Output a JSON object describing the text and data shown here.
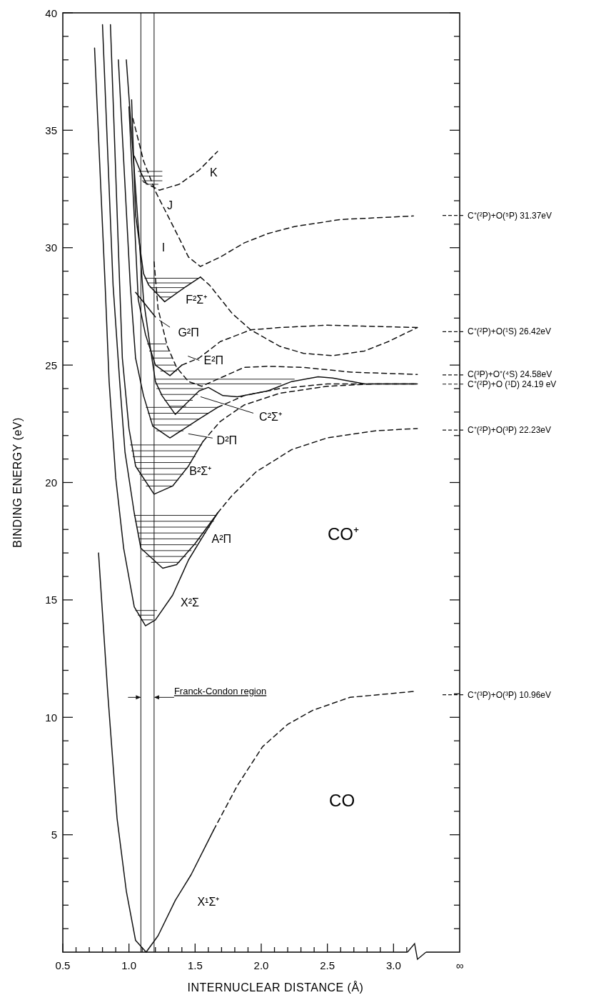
{
  "chart_data": {
    "type": "line",
    "xlabel": "INTERNUCLEAR DISTANCE (Å)",
    "ylabel": "BINDING ENERGY (eV)",
    "xlim": [
      0.5,
      3.5
    ],
    "ylim": [
      0,
      40
    ],
    "xticks": [
      0.5,
      {
        "value": 0.6,
        "label": null
      },
      {
        "value": 0.7,
        "label": null
      },
      {
        "value": 0.8,
        "label": null
      },
      {
        "value": 0.9,
        "label": null
      },
      {
        "value": 1,
        "label": "1.0"
      },
      {
        "value": 1.1,
        "label": null
      },
      {
        "value": 1.2,
        "label": null
      },
      {
        "value": 1.3,
        "label": null
      },
      {
        "value": 1.4,
        "label": null
      },
      1.5,
      {
        "value": 1.6,
        "label": null
      },
      {
        "value": 1.7,
        "label": null
      },
      {
        "value": 1.8,
        "label": null
      },
      {
        "value": 1.9,
        "label": null
      },
      {
        "value": 2,
        "label": "2.0"
      },
      {
        "value": 2.1,
        "label": null
      },
      {
        "value": 2.2,
        "label": null
      },
      {
        "value": 2.3,
        "label": null
      },
      {
        "value": 2.4,
        "label": null
      },
      2.5,
      {
        "value": 2.6,
        "label": null
      },
      {
        "value": 2.7,
        "label": null
      },
      {
        "value": 2.8,
        "label": null
      },
      {
        "value": 2.9,
        "label": null
      },
      {
        "value": 3,
        "label": "3.0"
      },
      {
        "value": 3.1,
        "label": null
      },
      {
        "value": 3.5,
        "label": "∞"
      }
    ],
    "yticks": [
      {
        "value": 1,
        "label": null
      },
      {
        "value": 2,
        "label": null
      },
      {
        "value": 3,
        "label": null
      },
      {
        "value": 4,
        "label": null
      },
      5,
      {
        "value": 6,
        "label": null
      },
      {
        "value": 7,
        "label": null
      },
      {
        "value": 8,
        "label": null
      },
      {
        "value": 9,
        "label": null
      },
      10,
      {
        "value": 11,
        "label": null
      },
      {
        "value": 12,
        "label": null
      },
      {
        "value": 13,
        "label": null
      },
      {
        "value": 14,
        "label": null
      },
      15,
      {
        "value": 16,
        "label": null
      },
      {
        "value": 17,
        "label": null
      },
      {
        "value": 18,
        "label": null
      },
      {
        "value": 19,
        "label": null
      },
      20,
      {
        "value": 21,
        "label": null
      },
      {
        "value": 22,
        "label": null
      },
      {
        "value": 23,
        "label": null
      },
      {
        "value": 24,
        "label": null
      },
      25,
      {
        "value": 26,
        "label": null
      },
      {
        "value": 27,
        "label": null
      },
      {
        "value": 28,
        "label": null
      },
      {
        "value": 29,
        "label": null
      },
      30,
      {
        "value": 31,
        "label": null
      },
      {
        "value": 32,
        "label": null
      },
      {
        "value": 33,
        "label": null
      },
      {
        "value": 34,
        "label": null
      },
      35,
      {
        "value": 36,
        "label": null
      },
      {
        "value": 37,
        "label": null
      },
      {
        "value": 38,
        "label": null
      },
      {
        "value": 39,
        "label": null
      },
      40
    ],
    "series": [
      {
        "color": "#111111",
        "line_style": "solid",
        "x": [
          0.77,
          0.84,
          0.91,
          0.98,
          1.05,
          1.13,
          1.22,
          1.35,
          1.47,
          1.64
        ],
        "values": [
          17.0,
          11.0,
          5.7,
          2.6,
          0.5,
          0,
          0.7,
          2.2,
          3.3,
          5.2
        ]
      },
      {
        "color": "#111111",
        "line_style": "dashed",
        "x": [
          1.64,
          1.82,
          2.01,
          2.2,
          2.39,
          2.67,
          3.15
        ],
        "values": [
          5.2,
          7.1,
          8.75,
          9.7,
          10.3,
          10.85,
          11.1
        ]
      },
      {
        "color": "#111111",
        "line_style": "solid",
        "x": [
          0.74,
          0.82,
          0.85,
          0.9,
          0.96,
          1.04,
          1.125,
          1.2,
          1.33,
          1.45,
          1.58,
          1.67
        ],
        "values": [
          38.5,
          28.4,
          24.3,
          20.2,
          17.2,
          14.7,
          13.9,
          14.15,
          15.2,
          16.7,
          17.9,
          18.7
        ]
      },
      {
        "color": "#111111",
        "line_style": "solid",
        "x": [
          0.8,
          0.88,
          0.93,
          0.97,
          1.04,
          1.09,
          1.255,
          1.36,
          1.5,
          1.67
        ],
        "values": [
          39.5,
          28.4,
          24.3,
          21.3,
          18.7,
          17.2,
          16.35,
          16.5,
          17.4,
          18.7
        ]
      },
      {
        "color": "#111111",
        "line_style": "dashed",
        "x": [
          1.67,
          1.78,
          1.96,
          2.23,
          2.5,
          2.86,
          3.18
        ],
        "values": [
          18.7,
          19.45,
          20.45,
          21.4,
          21.9,
          22.2,
          22.3
        ]
      },
      {
        "color": "#111111",
        "line_style": "solid",
        "x": [
          0.86,
          0.93,
          0.95,
          1.0,
          1.05,
          1.19,
          1.33,
          1.45,
          1.56
        ],
        "values": [
          39.5,
          28.4,
          25.3,
          22.3,
          20.7,
          19.5,
          19.85,
          20.7,
          21.75
        ]
      },
      {
        "color": "#111111",
        "line_style": "dashed",
        "x": [
          1.56,
          1.69,
          1.87,
          2.14,
          2.5,
          2.86,
          3.18
        ],
        "values": [
          21.75,
          22.6,
          23.3,
          23.8,
          24.1,
          24.2,
          24.2
        ]
      },
      {
        "color": "#111111",
        "line_style": "solid",
        "x": [
          0.92,
          1.01,
          1.05,
          1.11,
          1.18,
          1.31,
          1.53,
          1.67
        ],
        "values": [
          38,
          28.4,
          25.3,
          23.7,
          22.4,
          21.9,
          22.7,
          23.2
        ]
      },
      {
        "color": "#111111",
        "line_style": "dashed",
        "x": [
          1.67,
          1.87,
          2.14,
          2.5,
          3.18
        ],
        "values": [
          23.2,
          23.7,
          24.0,
          24.2,
          24.2
        ]
      },
      {
        "color": "#111111",
        "line_style": "solid",
        "x": [
          0.98,
          1.11,
          1.16,
          1.2,
          1.25,
          1.35,
          1.53,
          1.6,
          1.71,
          1.82,
          2.05,
          2.23,
          2.43,
          2.54,
          2.78,
          3.18
        ],
        "values": [
          38,
          27.8,
          25.8,
          24.3,
          23.7,
          22.9,
          23.9,
          24.05,
          23.7,
          23.65,
          23.9,
          24.3,
          24.5,
          24.45,
          24.2,
          24.2
        ]
      },
      {
        "color": "#111111",
        "line_style": "solid",
        "x": [
          1.0,
          1.07,
          1.125,
          1.2,
          1.31,
          1.4
        ],
        "values": [
          36,
          27.8,
          26.3,
          25.0,
          24.55,
          25.0
        ]
      },
      {
        "color": "#111111",
        "line_style": "dashed",
        "x": [
          1.4,
          1.53,
          1.69,
          1.92,
          2.14,
          2.5,
          3.18
        ],
        "values": [
          25.0,
          25.3,
          26.0,
          26.5,
          26.6,
          26.7,
          26.6
        ]
      },
      {
        "color": "#111111",
        "line_style": "solid",
        "x": [
          1.02,
          1.05,
          1.11,
          1.15,
          1.27,
          1.42,
          1.54
        ],
        "values": [
          36.3,
          31.4,
          28.9,
          28.4,
          27.7,
          28.3,
          28.75
        ]
      },
      {
        "color": "#111111",
        "line_style": "dashed",
        "x": [
          1.54,
          1.61,
          1.78,
          1.92,
          2.14,
          2.32,
          2.54,
          2.78,
          2.96,
          3.18
        ],
        "values": [
          28.75,
          28.4,
          27.2,
          26.5,
          25.8,
          25.5,
          25.4,
          25.6,
          26.0,
          26.6
        ]
      },
      {
        "color": "#111111",
        "line_style": "solid",
        "x": [
          1.05,
          1.2
        ],
        "values": [
          28.1,
          27.05
        ]
      },
      {
        "color": "#111111",
        "line_style": "dashed",
        "x": [
          1.19,
          1.22,
          1.29,
          1.36,
          1.45,
          1.55,
          1.67,
          1.87,
          2.05,
          2.32,
          2.68,
          3.18
        ],
        "values": [
          29.4,
          27.4,
          25.8,
          24.9,
          24.3,
          24.1,
          24.4,
          24.9,
          24.95,
          24.9,
          24.7,
          24.6
        ]
      },
      {
        "color": "#111111",
        "line_style": "dashed",
        "x": [
          1.03,
          1.11,
          1.2,
          1.29,
          1.38,
          1.45,
          1.54,
          1.69,
          1.87,
          2.05,
          2.25,
          2.6,
          3.15
        ],
        "values": [
          35.5,
          33.7,
          32.4,
          31.4,
          30.4,
          29.6,
          29.2,
          29.6,
          30.2,
          30.6,
          30.9,
          31.2,
          31.35
        ]
      },
      {
        "color": "#111111",
        "line_style": "dashed",
        "x": [
          1.11,
          1.23,
          1.38,
          1.53,
          1.67
        ],
        "values": [
          32.8,
          32.45,
          32.7,
          33.3,
          34.1
        ]
      },
      {
        "color": "#111111",
        "line_style": "solid",
        "x": [
          1.04,
          1.09,
          1.13
        ],
        "values": [
          33.9,
          33.2,
          32.75
        ]
      },
      {
        "color": "#111111",
        "line_style": "solid",
        "x": [
          1.05,
          1.21
        ],
        "values": [
          14.55,
          14.55
        ]
      },
      {
        "color": "#111111",
        "line_style": "solid",
        "x": [
          1.07,
          1.19
        ],
        "values": [
          14.35,
          14.35
        ]
      },
      {
        "color": "#111111",
        "line_style": "solid",
        "x": [
          1.09,
          1.18
        ],
        "values": [
          14.15,
          14.15
        ]
      },
      {
        "color": "#111111",
        "line_style": "solid",
        "x": [
          1.04,
          1.66
        ],
        "values": [
          18.6,
          18.6
        ]
      },
      {
        "color": "#111111",
        "line_style": "solid",
        "x": [
          1.05,
          1.64
        ],
        "values": [
          18.35,
          18.35
        ]
      },
      {
        "color": "#111111",
        "line_style": "solid",
        "x": [
          1.06,
          1.61
        ],
        "values": [
          18.1,
          18.1
        ]
      },
      {
        "color": "#111111",
        "line_style": "solid",
        "x": [
          1.07,
          1.58
        ],
        "values": [
          17.85,
          17.85
        ]
      },
      {
        "color": "#111111",
        "line_style": "solid",
        "x": [
          1.08,
          1.54
        ],
        "values": [
          17.6,
          17.6
        ]
      },
      {
        "color": "#111111",
        "line_style": "solid",
        "x": [
          1.09,
          1.51
        ],
        "values": [
          17.35,
          17.35
        ]
      },
      {
        "color": "#111111",
        "line_style": "solid",
        "x": [
          1.1,
          1.47
        ],
        "values": [
          17.1,
          17.1
        ]
      },
      {
        "color": "#111111",
        "line_style": "solid",
        "x": [
          1.13,
          1.43
        ],
        "values": [
          16.85,
          16.85
        ]
      },
      {
        "color": "#111111",
        "line_style": "solid",
        "x": [
          1.17,
          1.38
        ],
        "values": [
          16.6,
          16.6
        ]
      },
      {
        "color": "#111111",
        "line_style": "solid",
        "x": [
          1.01,
          1.55
        ],
        "values": [
          21.6,
          21.6
        ]
      },
      {
        "color": "#111111",
        "line_style": "solid",
        "x": [
          1.02,
          1.52
        ],
        "values": [
          21.35,
          21.35
        ]
      },
      {
        "color": "#111111",
        "line_style": "solid",
        "x": [
          1.03,
          1.5
        ],
        "values": [
          21.1,
          21.1
        ]
      },
      {
        "color": "#111111",
        "line_style": "solid",
        "x": [
          1.045,
          1.47
        ],
        "values": [
          20.85,
          20.85
        ]
      },
      {
        "color": "#111111",
        "line_style": "solid",
        "x": [
          1.06,
          1.44
        ],
        "values": [
          20.6,
          20.6
        ]
      },
      {
        "color": "#111111",
        "line_style": "solid",
        "x": [
          1.08,
          1.41
        ],
        "values": [
          20.35,
          20.35
        ]
      },
      {
        "color": "#111111",
        "line_style": "solid",
        "x": [
          1.1,
          1.37
        ],
        "values": [
          20.1,
          20.1
        ]
      },
      {
        "color": "#111111",
        "line_style": "solid",
        "x": [
          1.13,
          1.33
        ],
        "values": [
          19.85,
          19.85
        ]
      },
      {
        "color": "#111111",
        "line_style": "solid",
        "x": [
          1.13,
          1.67
        ],
        "values": [
          23.2,
          23.2
        ]
      },
      {
        "color": "#111111",
        "line_style": "solid",
        "x": [
          1.145,
          1.6
        ],
        "values": [
          22.95,
          22.95
        ]
      },
      {
        "color": "#111111",
        "line_style": "solid",
        "x": [
          1.16,
          1.53
        ],
        "values": [
          22.7,
          22.7
        ]
      },
      {
        "color": "#111111",
        "line_style": "solid",
        "x": [
          1.18,
          1.47
        ],
        "values": [
          22.45,
          22.45
        ]
      },
      {
        "color": "#111111",
        "line_style": "solid",
        "x": [
          1.21,
          1.41
        ],
        "values": [
          22.2,
          22.2
        ]
      },
      {
        "color": "#111111",
        "line_style": "solid",
        "x": [
          1.2,
          2.25
        ],
        "values": [
          24.4,
          24.4
        ]
      },
      {
        "color": "#111111",
        "line_style": "solid",
        "x": [
          1.2,
          2.15
        ],
        "values": [
          24.2,
          24.2
        ]
      },
      {
        "color": "#111111",
        "line_style": "solid",
        "x": [
          1.21,
          1.56
        ],
        "values": [
          24.0,
          24.0
        ]
      },
      {
        "color": "#111111",
        "line_style": "solid",
        "x": [
          1.24,
          1.52
        ],
        "values": [
          23.75,
          23.75
        ]
      },
      {
        "color": "#111111",
        "line_style": "solid",
        "x": [
          1.27,
          1.48
        ],
        "values": [
          23.5,
          23.5
        ]
      },
      {
        "color": "#111111",
        "line_style": "solid",
        "x": [
          1.31,
          1.43
        ],
        "values": [
          23.25,
          23.25
        ]
      },
      {
        "color": "#111111",
        "line_style": "solid",
        "x": [
          1.14,
          1.28
        ],
        "values": [
          25.9,
          25.9
        ]
      },
      {
        "color": "#111111",
        "line_style": "solid",
        "x": [
          1.155,
          1.31
        ],
        "values": [
          25.6,
          25.6
        ]
      },
      {
        "color": "#111111",
        "line_style": "solid",
        "x": [
          1.17,
          1.33
        ],
        "values": [
          25.3,
          25.3
        ]
      },
      {
        "color": "#111111",
        "line_style": "solid",
        "x": [
          1.2,
          1.35
        ],
        "values": [
          25.0,
          25.0
        ]
      },
      {
        "color": "#111111",
        "line_style": "solid",
        "x": [
          1.24,
          1.36
        ],
        "values": [
          24.75,
          24.75
        ]
      },
      {
        "color": "#111111",
        "line_style": "solid",
        "x": [
          1.12,
          1.52
        ],
        "values": [
          28.7,
          28.7
        ]
      },
      {
        "color": "#111111",
        "line_style": "solid",
        "x": [
          1.14,
          1.47
        ],
        "values": [
          28.5,
          28.5
        ]
      },
      {
        "color": "#111111",
        "line_style": "solid",
        "x": [
          1.16,
          1.42
        ],
        "values": [
          28.3,
          28.3
        ]
      },
      {
        "color": "#111111",
        "line_style": "solid",
        "x": [
          1.19,
          1.37
        ],
        "values": [
          28.1,
          28.1
        ]
      },
      {
        "color": "#111111",
        "line_style": "solid",
        "x": [
          1.23,
          1.32
        ],
        "values": [
          27.9,
          27.9
        ]
      },
      {
        "color": "#111111",
        "line_style": "solid",
        "x": [
          1.07,
          1.25
        ],
        "values": [
          33.25,
          33.25
        ]
      },
      {
        "color": "#111111",
        "line_style": "solid",
        "x": [
          1.08,
          1.25
        ],
        "values": [
          33.05,
          33.05
        ]
      },
      {
        "color": "#111111",
        "line_style": "solid",
        "x": [
          1.1,
          1.25
        ],
        "values": [
          32.85,
          32.85
        ]
      },
      {
        "color": "#111111",
        "line_style": "solid",
        "x": [
          1.13,
          1.22
        ],
        "values": [
          32.7,
          32.7
        ]
      }
    ],
    "ref_lines": [
      {
        "axis": "x",
        "value": 1.09
      },
      {
        "axis": "x",
        "value": 1.19,
        "label": "Franck-Condon region"
      },
      {
        "axis": "y",
        "value": 31.37,
        "label": "C⁺(²P)+O(⁵P) 31.37eV",
        "line_style": "dashed"
      },
      {
        "axis": "y",
        "value": 26.42,
        "label": "C⁺(²P)+O(¹S) 26.42eV",
        "line_style": "dashed"
      },
      {
        "axis": "y",
        "value": 24.58,
        "label": "C(³P)+O⁺(⁴S) 24.58eV",
        "line_style": "dashed"
      },
      {
        "axis": "y",
        "value": 24.19,
        "label": "C⁺(²P)+O (¹D) 24.19 eV",
        "line_style": "dashed"
      },
      {
        "axis": "y",
        "value": 22.23,
        "label": "C⁺(²P)+O(³P) 22.23eV",
        "line_style": "dashed"
      },
      {
        "axis": "y",
        "value": 10.96,
        "label": "C⁺(³P)+O(³P) 10.96eV",
        "line_style": "dashed"
      }
    ],
    "annotations": [
      "CO⁺",
      "CO",
      "X¹Σ⁺",
      "X²Σ",
      "A²Π",
      "B²Σ⁺",
      "D²Π",
      "C²Σ⁺",
      "E²Π",
      "G²Π",
      "F²Σ⁺",
      "I",
      "J",
      "K"
    ]
  }
}
